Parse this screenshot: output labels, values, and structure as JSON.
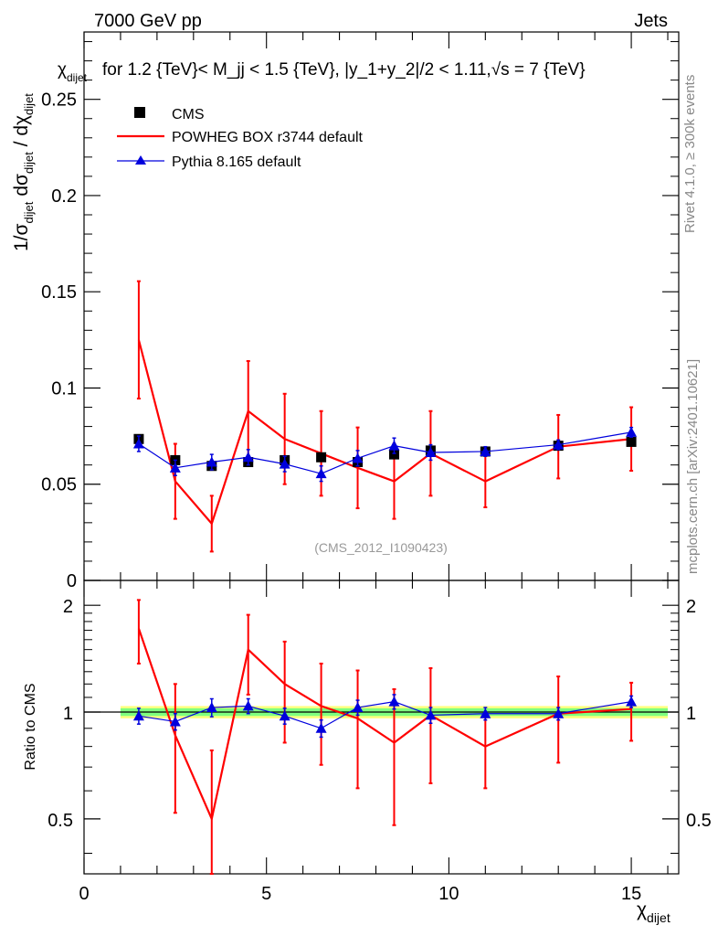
{
  "header": {
    "left": "7000 GeV pp",
    "right": "Jets"
  },
  "title": "for 1.2 {TeV}< M_jj < 1.5 {TeV}, |y_1+y_2|/2 < 1.11,√s = 7 {TeV}",
  "title_prefix": "χ_dijet",
  "side_labels": {
    "rivet": "Rivet 4.1.0, ≥ 300k events",
    "mcplots": "mcplots.cern.ch [arXiv:2401.10621]"
  },
  "analysis_label": "(CMS_2012_I1090423)",
  "colors": {
    "data": "#000000",
    "powheg": "#ff0000",
    "pythia": "#0000dd",
    "band_inner": "#7fff7f",
    "band_outer": "#ffff7f"
  },
  "chart_data": [
    {
      "type": "line",
      "panel": "main",
      "ylabel": "1/σ_dijet dσ_dijet / dχ_dijet",
      "xlim": [
        0,
        16.3
      ],
      "ylim": [
        0,
        0.285
      ],
      "yticks": [
        0,
        0.05,
        0.1,
        0.15,
        0.2,
        0.25
      ],
      "ytick_labels": [
        "0",
        "0.05",
        "0.1",
        "0.15",
        "0.2",
        "0.25"
      ],
      "legend": [
        "CMS",
        "POWHEG BOX r3744 default",
        "Pythia 8.165 default"
      ],
      "legend_position": "top-left",
      "series": [
        {
          "name": "CMS",
          "style": "markers",
          "x": [
            1.5,
            2.5,
            3.5,
            4.5,
            5.5,
            6.5,
            7.5,
            8.5,
            9.5,
            11,
            13,
            15
          ],
          "y": [
            0.0735,
            0.0625,
            0.0595,
            0.0615,
            0.0625,
            0.064,
            0.0615,
            0.0655,
            0.0675,
            0.067,
            0.07,
            0.072
          ],
          "err": [
            0.002,
            0.002,
            0.002,
            0.002,
            0.002,
            0.002,
            0.002,
            0.002,
            0.002,
            0.002,
            0.002,
            0.002
          ]
        },
        {
          "name": "POWHEG BOX r3744 default",
          "style": "line",
          "x": [
            1.5,
            2.5,
            3.5,
            4.5,
            5.5,
            6.5,
            7.5,
            8.5,
            9.5,
            11,
            13,
            15
          ],
          "y": [
            0.125,
            0.0515,
            0.0295,
            0.088,
            0.0735,
            0.066,
            0.0585,
            0.0515,
            0.066,
            0.0515,
            0.0695,
            0.0735
          ],
          "err": [
            0.0305,
            0.0195,
            0.0145,
            0.026,
            0.0235,
            0.022,
            0.021,
            0.0195,
            0.022,
            0.0135,
            0.0165,
            0.0165
          ]
        },
        {
          "name": "Pythia 8.165 default",
          "style": "line-markers",
          "x": [
            1.5,
            2.5,
            3.5,
            4.5,
            5.5,
            6.5,
            7.5,
            8.5,
            9.5,
            11,
            13,
            15
          ],
          "y": [
            0.071,
            0.0585,
            0.0615,
            0.064,
            0.0605,
            0.0555,
            0.0635,
            0.07,
            0.0665,
            0.067,
            0.0705,
            0.077
          ],
          "err": [
            0.004,
            0.004,
            0.004,
            0.004,
            0.004,
            0.004,
            0.004,
            0.004,
            0.004,
            0.0025,
            0.0025,
            0.0025
          ]
        }
      ]
    },
    {
      "type": "line",
      "panel": "ratio",
      "xlabel": "χ_dijet",
      "ylabel": "Ratio to CMS",
      "xlim": [
        0,
        16.3
      ],
      "ylim": [
        0.35,
        2.35
      ],
      "yscale": "log",
      "xticks": [
        0,
        5,
        10,
        15
      ],
      "xtick_labels": [
        "0",
        "5",
        "10",
        "15"
      ],
      "yticks": [
        0.5,
        1,
        2
      ],
      "ytick_labels": [
        "0.5",
        "1",
        "2"
      ],
      "band": {
        "x": [
          1,
          16
        ],
        "inner": [
          0.975,
          1.025
        ],
        "outer": [
          0.96,
          1.04
        ]
      },
      "series": [
        {
          "name": "POWHEG BOX r3744 default",
          "x": [
            1.5,
            2.5,
            3.5,
            4.5,
            5.5,
            6.5,
            7.5,
            8.5,
            9.5,
            11,
            13,
            15
          ],
          "y": [
            1.72,
            0.86,
            0.5,
            1.5,
            1.2,
            1.04,
            0.96,
            0.82,
            0.98,
            0.8,
            0.99,
            1.02
          ],
          "err": [
            0.35,
            0.34,
            0.28,
            0.38,
            0.38,
            0.33,
            0.35,
            0.34,
            0.35,
            0.19,
            0.27,
            0.19
          ]
        },
        {
          "name": "Pythia 8.165 default",
          "x": [
            1.5,
            2.5,
            3.5,
            4.5,
            5.5,
            6.5,
            7.5,
            8.5,
            9.5,
            11,
            13,
            15
          ],
          "y": [
            0.975,
            0.94,
            1.03,
            1.04,
            0.975,
            0.9,
            1.03,
            1.07,
            0.98,
            0.99,
            0.99,
            1.07
          ],
          "err": [
            0.05,
            0.05,
            0.06,
            0.05,
            0.05,
            0.05,
            0.05,
            0.05,
            0.05,
            0.04,
            0.04,
            0.04
          ]
        }
      ]
    }
  ]
}
